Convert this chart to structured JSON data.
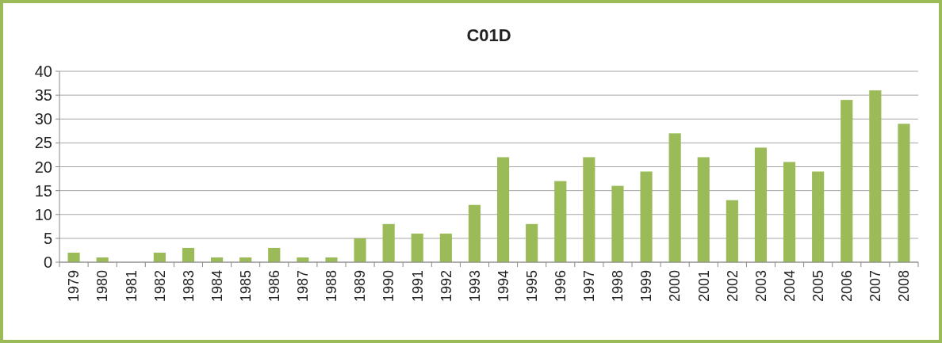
{
  "chart_data": {
    "type": "bar",
    "title": "C01D",
    "categories": [
      "1979",
      "1980",
      "1981",
      "1982",
      "1983",
      "1984",
      "1985",
      "1986",
      "1987",
      "1988",
      "1989",
      "1990",
      "1991",
      "1992",
      "1993",
      "1994",
      "1995",
      "1996",
      "1997",
      "1998",
      "1999",
      "2000",
      "2001",
      "2002",
      "2003",
      "2004",
      "2005",
      "2006",
      "2007",
      "2008"
    ],
    "values": [
      2,
      1,
      0,
      2,
      3,
      1,
      1,
      3,
      1,
      1,
      5,
      8,
      6,
      6,
      12,
      22,
      8,
      17,
      22,
      16,
      19,
      27,
      22,
      13,
      24,
      21,
      19,
      34,
      36,
      29
    ],
    "color": "#9bbb59",
    "ylim": [
      0,
      40
    ],
    "yticks": [
      0,
      5,
      10,
      15,
      20,
      25,
      30,
      35,
      40
    ],
    "grid": "y"
  }
}
